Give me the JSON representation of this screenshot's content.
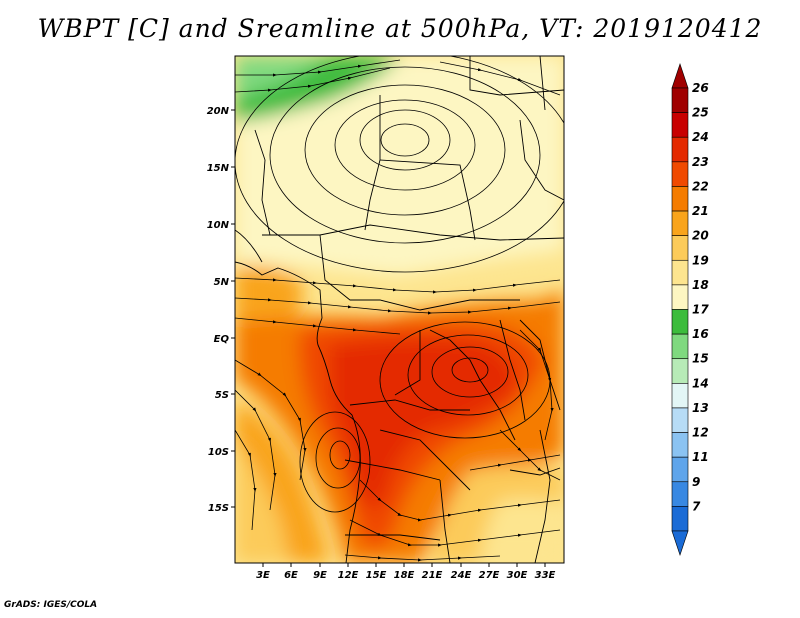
{
  "title": "WBPT [C] and Sreamline at 500hPa, VT: 2019120412",
  "footer": "GrADS: IGES/COLA",
  "map": {
    "lon_range": [
      0,
      35
    ],
    "lat_range": [
      -20,
      24.5
    ],
    "lat_ticks": [
      "20N",
      "15N",
      "10N",
      "5N",
      "EQ",
      "5S",
      "10S",
      "15S"
    ],
    "lon_ticks": [
      "3E",
      "6E",
      "9E",
      "12E",
      "15E",
      "18E",
      "21E",
      "24E",
      "27E",
      "30E",
      "33E"
    ]
  },
  "colorbar": {
    "labels": [
      "26",
      "25",
      "24",
      "23",
      "22",
      "21",
      "20",
      "19",
      "18",
      "17",
      "16",
      "15",
      "14",
      "13",
      "12",
      "11",
      "9",
      "7"
    ],
    "colors": [
      "#a00000",
      "#c80000",
      "#e42a00",
      "#f04a00",
      "#f57c00",
      "#f9a41c",
      "#fccb5a",
      "#fde58f",
      "#fdf6c2",
      "#3cbc3c",
      "#7fd97f",
      "#b7ebb7",
      "#e3f6f6",
      "#b7dcf6",
      "#8bc3f2",
      "#5fa5eb",
      "#3888e2",
      "#1a6bd6"
    ]
  }
}
